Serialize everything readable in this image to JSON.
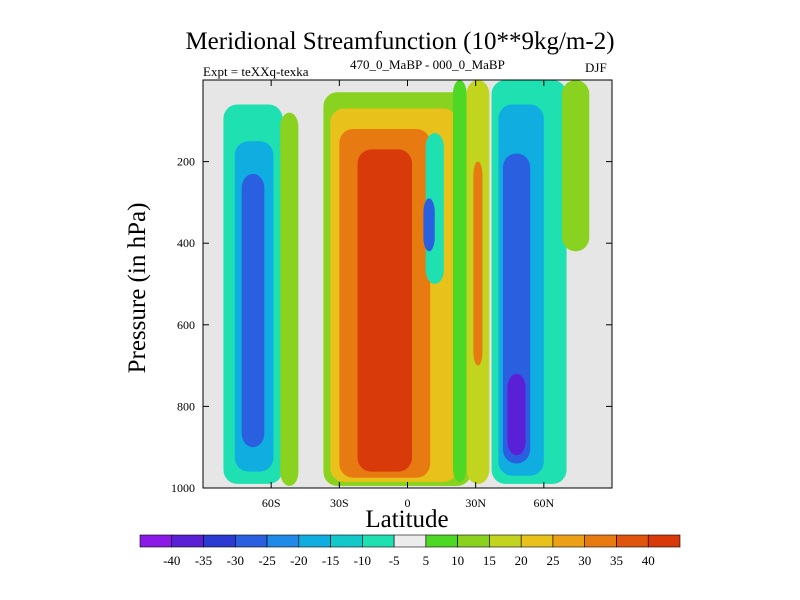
{
  "chart_data": {
    "type": "heatmap",
    "title": "Meridional Streamfunction (10**9kg/m-2)",
    "subtitle_left": "Expt = teXXq-texka",
    "subtitle_center": "470_0_MaBP - 000_0_MaBP",
    "subtitle_right": "DJF",
    "xlabel": "Latitude",
    "ylabel": "Pressure (in hPa)",
    "xlim": [
      -90,
      90
    ],
    "ylim": [
      1000,
      0
    ],
    "x_ticks": [
      -60,
      -30,
      0,
      30,
      60
    ],
    "x_tick_labels": [
      "60S",
      "30S",
      "0",
      "30N",
      "60N"
    ],
    "y_ticks": [
      200,
      400,
      600,
      800,
      1000
    ],
    "y_tick_labels": [
      "200",
      "400",
      "600",
      "800",
      "1000"
    ],
    "colorbar": {
      "levels": [
        -40,
        -35,
        -30,
        -25,
        -20,
        -15,
        -10,
        -5,
        5,
        10,
        15,
        20,
        25,
        30,
        35,
        40
      ],
      "labels": [
        "-40",
        "-35",
        "-30",
        "-25",
        "-20",
        "-15",
        "-10",
        "-5",
        "5",
        "10",
        "15",
        "20",
        "25",
        "30",
        "35",
        "40"
      ],
      "colors": [
        "#8a1ae6",
        "#5a20d6",
        "#2a3ad2",
        "#2a60e0",
        "#1f8ae8",
        "#10aee0",
        "#12c8c8",
        "#1ee0b0",
        "#ececec",
        "#4ed826",
        "#8ad220",
        "#c2d41e",
        "#e8c21a",
        "#eca016",
        "#e87a12",
        "#e0540e",
        "#d83a0a"
      ]
    },
    "bands": [
      {
        "lat_min": -81,
        "lat_max": -55,
        "p_top": 60,
        "p_bottom": 990,
        "value": -10
      },
      {
        "lat_min": -76,
        "lat_max": -59,
        "p_top": 150,
        "p_bottom": 960,
        "value": -20
      },
      {
        "lat_min": -73,
        "lat_max": -63,
        "p_top": 230,
        "p_bottom": 900,
        "value": -30
      },
      {
        "lat_min": -56,
        "lat_max": -48,
        "p_top": 80,
        "p_bottom": 995,
        "value": 10
      },
      {
        "lat_min": -37,
        "lat_max": 28,
        "p_top": 30,
        "p_bottom": 995,
        "value": 10
      },
      {
        "lat_min": -34,
        "lat_max": 22,
        "p_top": 70,
        "p_bottom": 985,
        "value": 20
      },
      {
        "lat_min": -30,
        "lat_max": 10,
        "p_top": 120,
        "p_bottom": 975,
        "value": 30
      },
      {
        "lat_min": -22,
        "lat_max": 2,
        "p_top": 170,
        "p_bottom": 960,
        "value": 40
      },
      {
        "lat_min": 8,
        "lat_max": 16,
        "p_top": 130,
        "p_bottom": 500,
        "value": -10
      },
      {
        "lat_min": 7,
        "lat_max": 12,
        "p_top": 290,
        "p_bottom": 420,
        "value": -30
      },
      {
        "lat_min": 20,
        "lat_max": 26,
        "p_top": 0,
        "p_bottom": 985,
        "value": 5
      },
      {
        "lat_min": 26,
        "lat_max": 36,
        "p_top": 0,
        "p_bottom": 990,
        "value": 15
      },
      {
        "lat_min": 29,
        "lat_max": 33,
        "p_top": 200,
        "p_bottom": 700,
        "value": 30
      },
      {
        "lat_min": 37,
        "lat_max": 70,
        "p_top": 0,
        "p_bottom": 990,
        "value": -10
      },
      {
        "lat_min": 40,
        "lat_max": 60,
        "p_top": 60,
        "p_bottom": 970,
        "value": -20
      },
      {
        "lat_min": 42,
        "lat_max": 54,
        "p_top": 180,
        "p_bottom": 940,
        "value": -30
      },
      {
        "lat_min": 44,
        "lat_max": 52,
        "p_top": 720,
        "p_bottom": 920,
        "value": -40
      },
      {
        "lat_min": 68,
        "lat_max": 80,
        "p_top": 0,
        "p_bottom": 420,
        "value": 10
      }
    ]
  }
}
